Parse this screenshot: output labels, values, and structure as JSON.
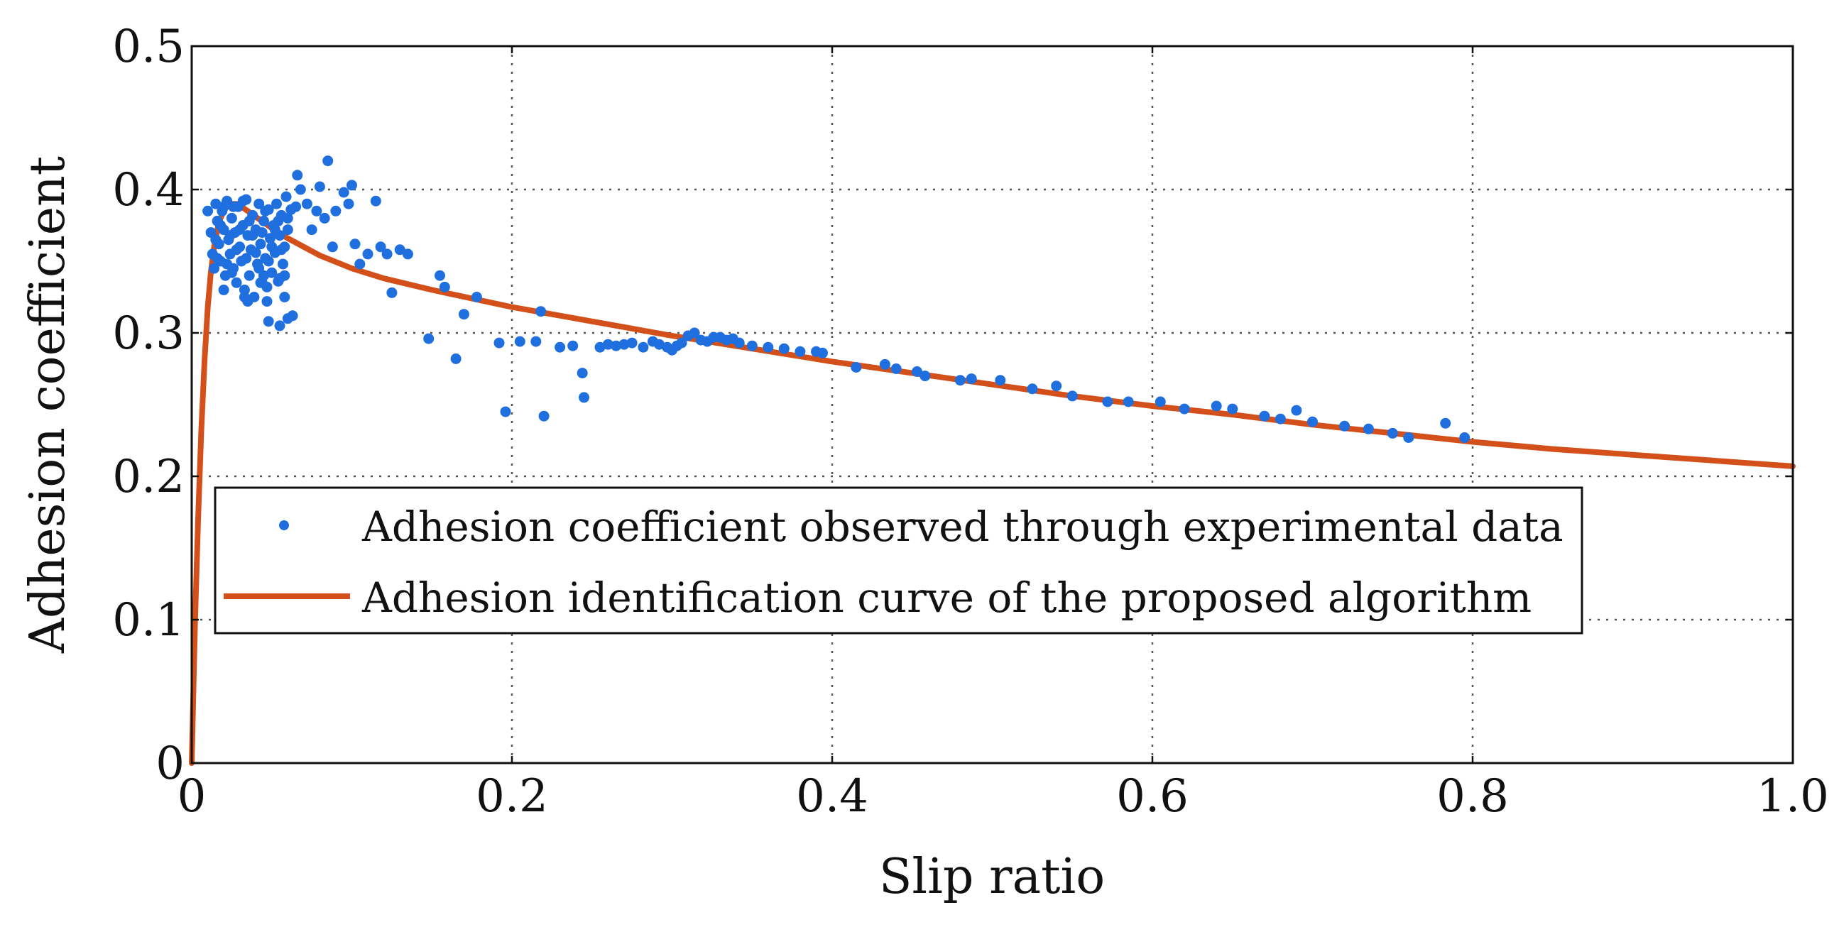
{
  "chart_data": {
    "type": "scatter",
    "title": "",
    "xlabel": "Slip ratio",
    "ylabel": "Adhesion coefficient",
    "xlim": [
      0,
      1.0
    ],
    "ylim": [
      0,
      0.5
    ],
    "x_ticks": [
      "0",
      "0.2",
      "0.4",
      "0.6",
      "0.8",
      "1.0"
    ],
    "y_ticks": [
      "0",
      "0.1",
      "0.2",
      "0.3",
      "0.4",
      "0.5"
    ],
    "grid": true,
    "legend_position": "lower-left",
    "colors": {
      "scatter": "#1f6fdf",
      "curve": "#d4501a"
    },
    "series": [
      {
        "name": "Adhesion coefficient observed through experimental data",
        "kind": "scatter",
        "points": [
          [
            0.01,
            0.385
          ],
          [
            0.012,
            0.37
          ],
          [
            0.013,
            0.355
          ],
          [
            0.014,
            0.345
          ],
          [
            0.015,
            0.39
          ],
          [
            0.016,
            0.378
          ],
          [
            0.017,
            0.362
          ],
          [
            0.018,
            0.35
          ],
          [
            0.019,
            0.385
          ],
          [
            0.02,
            0.372
          ],
          [
            0.021,
            0.34
          ],
          [
            0.022,
            0.392
          ],
          [
            0.023,
            0.365
          ],
          [
            0.024,
            0.355
          ],
          [
            0.025,
            0.38
          ],
          [
            0.026,
            0.345
          ],
          [
            0.027,
            0.37
          ],
          [
            0.028,
            0.335
          ],
          [
            0.029,
            0.388
          ],
          [
            0.03,
            0.36
          ],
          [
            0.031,
            0.35
          ],
          [
            0.032,
            0.375
          ],
          [
            0.033,
            0.33
          ],
          [
            0.034,
            0.393
          ],
          [
            0.035,
            0.368
          ],
          [
            0.036,
            0.34
          ],
          [
            0.037,
            0.358
          ],
          [
            0.038,
            0.382
          ],
          [
            0.039,
            0.325
          ],
          [
            0.04,
            0.372
          ],
          [
            0.041,
            0.348
          ],
          [
            0.042,
            0.39
          ],
          [
            0.043,
            0.362
          ],
          [
            0.044,
            0.335
          ],
          [
            0.045,
            0.378
          ],
          [
            0.046,
            0.352
          ],
          [
            0.047,
            0.322
          ],
          [
            0.048,
            0.386
          ],
          [
            0.049,
            0.366
          ],
          [
            0.05,
            0.342
          ],
          [
            0.051,
            0.375
          ],
          [
            0.052,
            0.356
          ],
          [
            0.053,
            0.39
          ],
          [
            0.054,
            0.336
          ],
          [
            0.055,
            0.368
          ],
          [
            0.056,
            0.382
          ],
          [
            0.057,
            0.348
          ],
          [
            0.058,
            0.36
          ],
          [
            0.059,
            0.395
          ],
          [
            0.06,
            0.372
          ],
          [
            0.015,
            0.365
          ],
          [
            0.018,
            0.375
          ],
          [
            0.022,
            0.348
          ],
          [
            0.026,
            0.388
          ],
          [
            0.03,
            0.372
          ],
          [
            0.034,
            0.352
          ],
          [
            0.038,
            0.368
          ],
          [
            0.042,
            0.345
          ],
          [
            0.046,
            0.385
          ],
          [
            0.05,
            0.36
          ],
          [
            0.054,
            0.378
          ],
          [
            0.058,
            0.34
          ],
          [
            0.062,
            0.386
          ],
          [
            0.016,
            0.352
          ],
          [
            0.02,
            0.388
          ],
          [
            0.024,
            0.368
          ],
          [
            0.028,
            0.358
          ],
          [
            0.032,
            0.392
          ],
          [
            0.036,
            0.378
          ],
          [
            0.04,
            0.356
          ],
          [
            0.044,
            0.37
          ],
          [
            0.048,
            0.35
          ],
          [
            0.052,
            0.372
          ],
          [
            0.056,
            0.358
          ],
          [
            0.06,
            0.38
          ],
          [
            0.033,
            0.325
          ],
          [
            0.035,
            0.322
          ],
          [
            0.043,
            0.335
          ],
          [
            0.047,
            0.332
          ],
          [
            0.055,
            0.338
          ],
          [
            0.02,
            0.33
          ],
          [
            0.025,
            0.342
          ],
          [
            0.045,
            0.34
          ],
          [
            0.048,
            0.308
          ],
          [
            0.055,
            0.305
          ],
          [
            0.06,
            0.31
          ],
          [
            0.063,
            0.312
          ],
          [
            0.058,
            0.325
          ],
          [
            0.065,
            0.388
          ],
          [
            0.068,
            0.4
          ],
          [
            0.066,
            0.41
          ],
          [
            0.072,
            0.39
          ],
          [
            0.075,
            0.372
          ],
          [
            0.078,
            0.385
          ],
          [
            0.08,
            0.402
          ],
          [
            0.083,
            0.38
          ],
          [
            0.085,
            0.42
          ],
          [
            0.088,
            0.36
          ],
          [
            0.09,
            0.385
          ],
          [
            0.095,
            0.398
          ],
          [
            0.098,
            0.39
          ],
          [
            0.1,
            0.403
          ],
          [
            0.102,
            0.362
          ],
          [
            0.105,
            0.348
          ],
          [
            0.11,
            0.355
          ],
          [
            0.115,
            0.392
          ],
          [
            0.118,
            0.36
          ],
          [
            0.122,
            0.355
          ],
          [
            0.125,
            0.328
          ],
          [
            0.13,
            0.358
          ],
          [
            0.135,
            0.355
          ],
          [
            0.148,
            0.296
          ],
          [
            0.155,
            0.34
          ],
          [
            0.158,
            0.332
          ],
          [
            0.165,
            0.282
          ],
          [
            0.17,
            0.313
          ],
          [
            0.178,
            0.325
          ],
          [
            0.192,
            0.293
          ],
          [
            0.196,
            0.245
          ],
          [
            0.205,
            0.294
          ],
          [
            0.215,
            0.294
          ],
          [
            0.218,
            0.315
          ],
          [
            0.22,
            0.242
          ],
          [
            0.23,
            0.29
          ],
          [
            0.238,
            0.291
          ],
          [
            0.244,
            0.272
          ],
          [
            0.245,
            0.255
          ],
          [
            0.255,
            0.29
          ],
          [
            0.26,
            0.292
          ],
          [
            0.265,
            0.291
          ],
          [
            0.27,
            0.292
          ],
          [
            0.275,
            0.293
          ],
          [
            0.282,
            0.29
          ],
          [
            0.288,
            0.294
          ],
          [
            0.292,
            0.292
          ],
          [
            0.297,
            0.29
          ],
          [
            0.3,
            0.288
          ],
          [
            0.303,
            0.291
          ],
          [
            0.306,
            0.293
          ],
          [
            0.31,
            0.298
          ],
          [
            0.314,
            0.3
          ],
          [
            0.318,
            0.295
          ],
          [
            0.322,
            0.294
          ],
          [
            0.326,
            0.297
          ],
          [
            0.33,
            0.297
          ],
          [
            0.334,
            0.295
          ],
          [
            0.338,
            0.296
          ],
          [
            0.342,
            0.293
          ],
          [
            0.35,
            0.291
          ],
          [
            0.36,
            0.29
          ],
          [
            0.37,
            0.289
          ],
          [
            0.38,
            0.287
          ],
          [
            0.39,
            0.287
          ],
          [
            0.394,
            0.286
          ],
          [
            0.415,
            0.276
          ],
          [
            0.433,
            0.278
          ],
          [
            0.44,
            0.275
          ],
          [
            0.453,
            0.273
          ],
          [
            0.458,
            0.27
          ],
          [
            0.48,
            0.267
          ],
          [
            0.487,
            0.268
          ],
          [
            0.505,
            0.267
          ],
          [
            0.525,
            0.261
          ],
          [
            0.54,
            0.263
          ],
          [
            0.55,
            0.256
          ],
          [
            0.572,
            0.252
          ],
          [
            0.585,
            0.252
          ],
          [
            0.605,
            0.252
          ],
          [
            0.62,
            0.247
          ],
          [
            0.64,
            0.249
          ],
          [
            0.65,
            0.247
          ],
          [
            0.67,
            0.242
          ],
          [
            0.68,
            0.24
          ],
          [
            0.69,
            0.246
          ],
          [
            0.7,
            0.238
          ],
          [
            0.72,
            0.235
          ],
          [
            0.735,
            0.233
          ],
          [
            0.75,
            0.23
          ],
          [
            0.76,
            0.227
          ],
          [
            0.783,
            0.237
          ],
          [
            0.795,
            0.227
          ]
        ]
      },
      {
        "name": "Adhesion identification curve of the proposed algorithm",
        "kind": "line",
        "points": [
          [
            0,
            0
          ],
          [
            0.002,
            0.095
          ],
          [
            0.004,
            0.17
          ],
          [
            0.006,
            0.232
          ],
          [
            0.008,
            0.28
          ],
          [
            0.01,
            0.318
          ],
          [
            0.012,
            0.343
          ],
          [
            0.014,
            0.36
          ],
          [
            0.016,
            0.372
          ],
          [
            0.018,
            0.38
          ],
          [
            0.02,
            0.385
          ],
          [
            0.022,
            0.388
          ],
          [
            0.025,
            0.39
          ],
          [
            0.028,
            0.39
          ],
          [
            0.031,
            0.388
          ],
          [
            0.035,
            0.385
          ],
          [
            0.04,
            0.381
          ],
          [
            0.05,
            0.373
          ],
          [
            0.06,
            0.366
          ],
          [
            0.07,
            0.36
          ],
          [
            0.08,
            0.354
          ],
          [
            0.1,
            0.345
          ],
          [
            0.12,
            0.338
          ],
          [
            0.15,
            0.33
          ],
          [
            0.2,
            0.318
          ],
          [
            0.25,
            0.308
          ],
          [
            0.3,
            0.298
          ],
          [
            0.35,
            0.289
          ],
          [
            0.4,
            0.28
          ],
          [
            0.45,
            0.272
          ],
          [
            0.5,
            0.264
          ],
          [
            0.55,
            0.256
          ],
          [
            0.6,
            0.249
          ],
          [
            0.65,
            0.243
          ],
          [
            0.7,
            0.236
          ],
          [
            0.75,
            0.23
          ],
          [
            0.8,
            0.224
          ],
          [
            0.85,
            0.219
          ],
          [
            0.9,
            0.215
          ],
          [
            0.95,
            0.211
          ],
          [
            1.0,
            0.207
          ]
        ]
      }
    ]
  }
}
